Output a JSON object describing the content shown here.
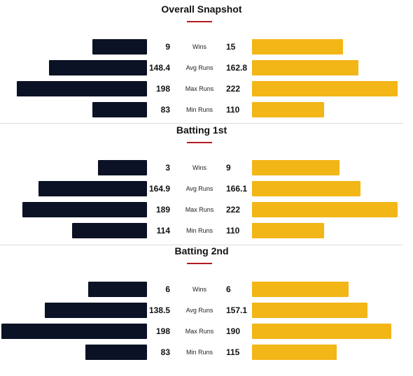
{
  "colors": {
    "left_team": "#0b1225",
    "right_team": "#f2b617",
    "accent": "#b31b24"
  },
  "scale_max": 222,
  "sections": [
    {
      "title": "Overall Snapshot",
      "rows": [
        {
          "label": "Wins",
          "left": "9",
          "right": "15"
        },
        {
          "label": "Avg Runs",
          "left": "148.4",
          "right": "162.8"
        },
        {
          "label": "Max Runs",
          "left": "198",
          "right": "222"
        },
        {
          "label": "Min Runs",
          "left": "83",
          "right": "110"
        }
      ]
    },
    {
      "title": "Batting 1st",
      "rows": [
        {
          "label": "Wins",
          "left": "3",
          "right": "9"
        },
        {
          "label": "Avg Runs",
          "left": "164.9",
          "right": "166.1"
        },
        {
          "label": "Max Runs",
          "left": "189",
          "right": "222"
        },
        {
          "label": "Min Runs",
          "left": "114",
          "right": "110"
        }
      ]
    },
    {
      "title": "Batting 2nd",
      "rows": [
        {
          "label": "Wins",
          "left": "6",
          "right": "6"
        },
        {
          "label": "Avg Runs",
          "left": "138.5",
          "right": "157.1"
        },
        {
          "label": "Max Runs",
          "left": "198",
          "right": "190"
        },
        {
          "label": "Min Runs",
          "left": "83",
          "right": "115"
        }
      ]
    }
  ]
}
